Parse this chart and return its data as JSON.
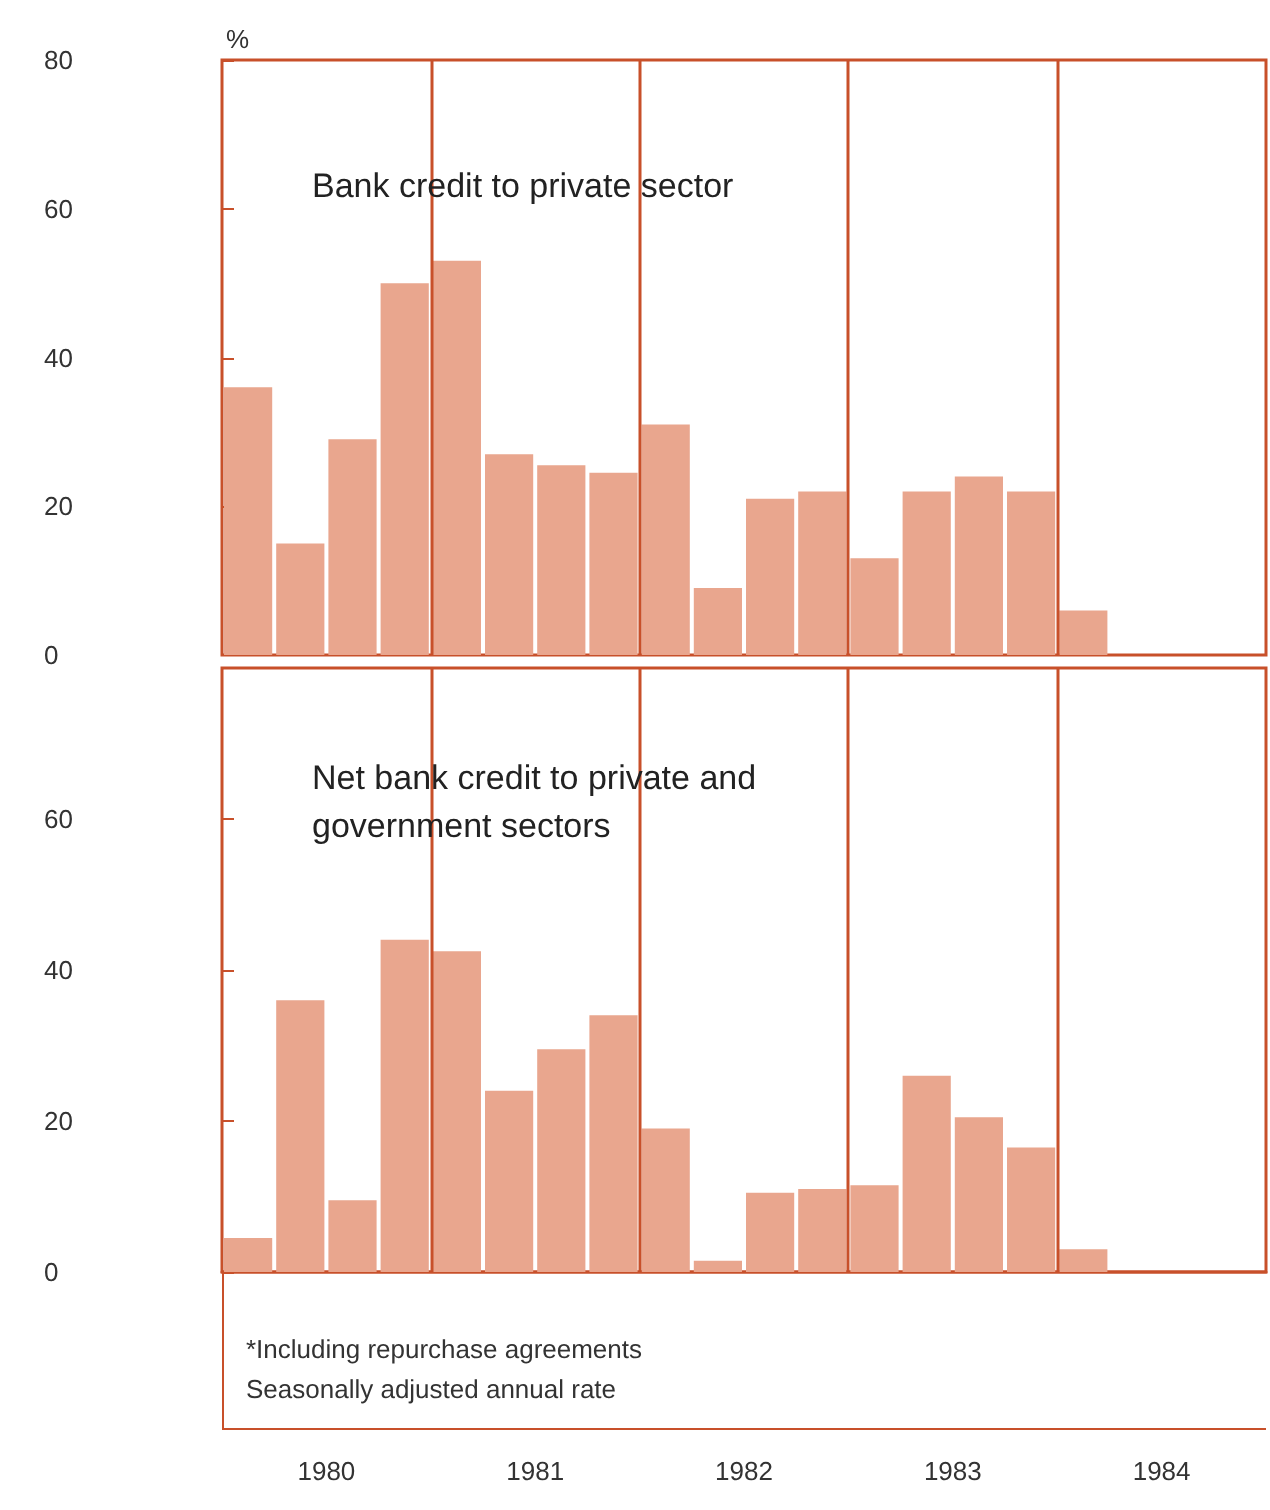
{
  "chart_data": [
    {
      "type": "bar",
      "title": "Bank credit to private sector",
      "ylabel": "%",
      "color": "#e9a68e",
      "x": [
        1980.125,
        1980.375,
        1980.625,
        1980.875,
        1981.125,
        1981.375,
        1981.625,
        1981.875,
        1982.125,
        1982.375,
        1982.625,
        1982.875,
        1983.125,
        1983.375,
        1983.625,
        1983.875,
        1984.125
      ],
      "values": [
        36,
        15,
        29,
        50,
        53,
        27,
        25.5,
        24.5,
        31,
        9,
        21,
        22,
        13,
        22,
        24,
        22,
        6
      ],
      "xlim": [
        1980,
        1985
      ],
      "ylim": [
        0,
        80
      ],
      "yticks": [
        0,
        20,
        40,
        60,
        80
      ],
      "tick_labels": "y",
      "grid": false,
      "ref_lines": [
        {
          "axis": "x",
          "value": 1981,
          "color": "#c8502a"
        },
        {
          "axis": "x",
          "value": 1982,
          "color": "#c8502a"
        },
        {
          "axis": "x",
          "value": 1983,
          "color": "#c8502a"
        },
        {
          "axis": "x",
          "value": 1984,
          "color": "#c8502a"
        }
      ]
    },
    {
      "type": "bar",
      "title": "Net bank credit to private and government sectors",
      "color": "#e9a68e",
      "x": [
        1980.125,
        1980.375,
        1980.625,
        1980.875,
        1981.125,
        1981.375,
        1981.625,
        1981.875,
        1982.125,
        1982.375,
        1982.625,
        1982.875,
        1983.125,
        1983.375,
        1983.625,
        1983.875,
        1984.125
      ],
      "values": [
        4.5,
        36,
        9.5,
        44,
        42.5,
        24,
        29.5,
        34,
        19,
        1.5,
        10.5,
        11,
        11.5,
        26,
        20.5,
        16.5,
        3
      ],
      "xlim": [
        1980,
        1985
      ],
      "xticks": [
        {
          "value": 1980.5,
          "label": "1980"
        },
        {
          "value": 1981.5,
          "label": "1981"
        },
        {
          "value": 1982.5,
          "label": "1982"
        },
        {
          "value": 1983.5,
          "label": "1983"
        },
        {
          "value": 1984.5,
          "label": "1984"
        }
      ],
      "ylim": [
        0,
        80
      ],
      "yticks": [
        0,
        20,
        40,
        60
      ],
      "grid": false,
      "annotations": [
        "*Including repurchase agreements",
        "Seasonally adjusted annual rate"
      ],
      "ref_lines": [
        {
          "axis": "x",
          "value": 1981,
          "color": "#c8502a"
        },
        {
          "axis": "x",
          "value": 1982,
          "color": "#c8502a"
        },
        {
          "axis": "x",
          "value": 1983,
          "color": "#c8502a"
        },
        {
          "axis": "x",
          "value": 1984,
          "color": "#c8502a"
        }
      ]
    }
  ]
}
